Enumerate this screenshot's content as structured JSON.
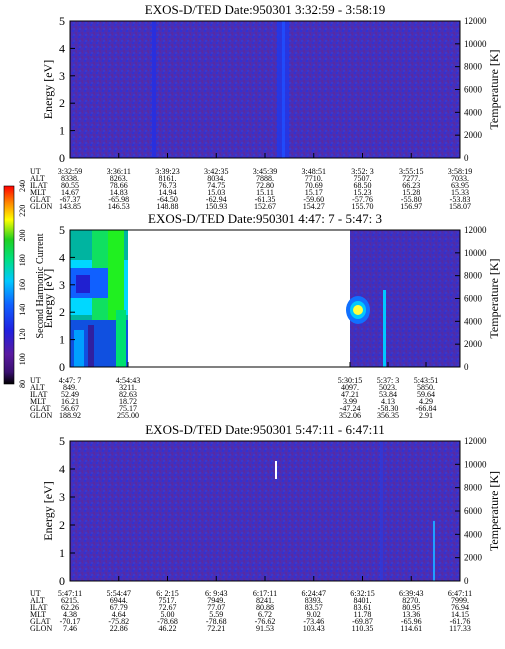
{
  "colorbar": {
    "label": "Second Harmonic Current",
    "ticks": [
      "80",
      "100",
      "120",
      "140",
      "160",
      "180",
      "200",
      "220",
      "240"
    ]
  },
  "row_labels": [
    "UT",
    "ALT",
    "ILAT",
    "MLT",
    "GLAT",
    "GLON"
  ],
  "chart_data": [
    {
      "type": "heatmap",
      "title": "EXOS-D/TED   Date:950301   3:32:59 - 3:58:19",
      "ylabel": "Energy [eV]",
      "ylabel_right": "Temperature [K]",
      "ylim": [
        0,
        5
      ],
      "ylim_right": [
        0,
        12000
      ],
      "yticks": [
        "0",
        "1",
        "2",
        "3",
        "4",
        "5"
      ],
      "yticks_right": [
        "0",
        "2000",
        "4000",
        "6000",
        "8000",
        "10000",
        "12000"
      ],
      "x": [
        0,
        1,
        2,
        3,
        4,
        5,
        6,
        7,
        8
      ],
      "table": [
        [
          "3:32:59",
          "3:36:11",
          "3:39:23",
          "3:42:35",
          "3:45:39",
          "3:48:51",
          "3:52: 3",
          "3:55:15",
          "3:58:19"
        ],
        [
          "8338.",
          "8263.",
          "8161.",
          "8034.",
          "7888.",
          "7710.",
          "7507.",
          "7277.",
          "7033."
        ],
        [
          "80.55",
          "78.66",
          "76.73",
          "74.75",
          "72.80",
          "70.69",
          "68.50",
          "66.23",
          "63.95"
        ],
        [
          "14.67",
          "14.83",
          "14.94",
          "15.03",
          "15.11",
          "15.17",
          "15.23",
          "15.28",
          "15.33"
        ],
        [
          "-67.37",
          "-65.98",
          "-64.50",
          "-62.94",
          "-61.35",
          "-59.60",
          "-57.76",
          "-55.80",
          "-53.83"
        ],
        [
          "143.85",
          "146.53",
          "148.88",
          "150.93",
          "152.67",
          "154.27",
          "155.70",
          "156.97",
          "158.07"
        ]
      ]
    },
    {
      "type": "heatmap",
      "title": "EXOS-D/TED   Date:950301   4:47: 7 - 5:47: 3",
      "ylabel": "Energy [eV]",
      "ylabel_right": "Temperature [K]",
      "ylim": [
        0,
        5
      ],
      "ylim_right": [
        0,
        12000
      ],
      "yticks": [
        "0",
        "1",
        "2",
        "3",
        "4",
        "5"
      ],
      "yticks_right": [
        "0",
        "2000",
        "4000",
        "6000",
        "8000",
        "10000",
        "12000"
      ],
      "x": [
        0,
        1,
        2,
        3,
        4
      ],
      "table": [
        [
          "4:47: 7",
          "4:54:43",
          "5:30:15",
          "5:37: 3",
          "5:43:51"
        ],
        [
          "849.",
          "3211.",
          "4097.",
          "5023.",
          "5850."
        ],
        [
          "52.49",
          "82.63",
          "47.21",
          "53.84",
          "59.64"
        ],
        [
          "16.21",
          "18.72",
          "3.99",
          "4.13",
          "4.29"
        ],
        [
          "56.67",
          "75.17",
          "-47.24",
          "-58.30",
          "-66.84"
        ],
        [
          "188.92",
          "255.00",
          "352.06",
          "356.35",
          "2.91"
        ]
      ]
    },
    {
      "type": "heatmap",
      "title": "EXOS-D/TED   Date:950301   5:47:11 - 6:47:11",
      "ylabel": "Energy [eV]",
      "ylabel_right": "Temperature [K]",
      "ylim": [
        0,
        5
      ],
      "ylim_right": [
        0,
        12000
      ],
      "yticks": [
        "0",
        "1",
        "2",
        "3",
        "4",
        "5"
      ],
      "yticks_right": [
        "0",
        "2000",
        "4000",
        "6000",
        "8000",
        "10000",
        "12000"
      ],
      "x": [
        0,
        1,
        2,
        3,
        4,
        5,
        6,
        7,
        8
      ],
      "table": [
        [
          "5:47:11",
          "5:54:47",
          "6: 2:15",
          "6: 9:43",
          "6:17:11",
          "6:24:47",
          "6:32:15",
          "6:39:43",
          "6:47:11"
        ],
        [
          "6215.",
          "6944.",
          "7517.",
          "7949.",
          "8241.",
          "8393.",
          "8401.",
          "8270.",
          "7999."
        ],
        [
          "62.26",
          "67.79",
          "72.67",
          "77.07",
          "80.88",
          "83.57",
          "83.61",
          "80.95",
          "76.94"
        ],
        [
          "4.38",
          "4.64",
          "5.00",
          "5.59",
          "6.72",
          "9.02",
          "11.78",
          "13.36",
          "14.15"
        ],
        [
          "-70.17",
          "-75.82",
          "-78.68",
          "-78.68",
          "-76.62",
          "-73.46",
          "-69.87",
          "-65.96",
          "-61.76"
        ],
        [
          "7.46",
          "22.86",
          "46.22",
          "72.21",
          "91.53",
          "103.43",
          "110.35",
          "114.61",
          "117.33"
        ]
      ]
    }
  ]
}
